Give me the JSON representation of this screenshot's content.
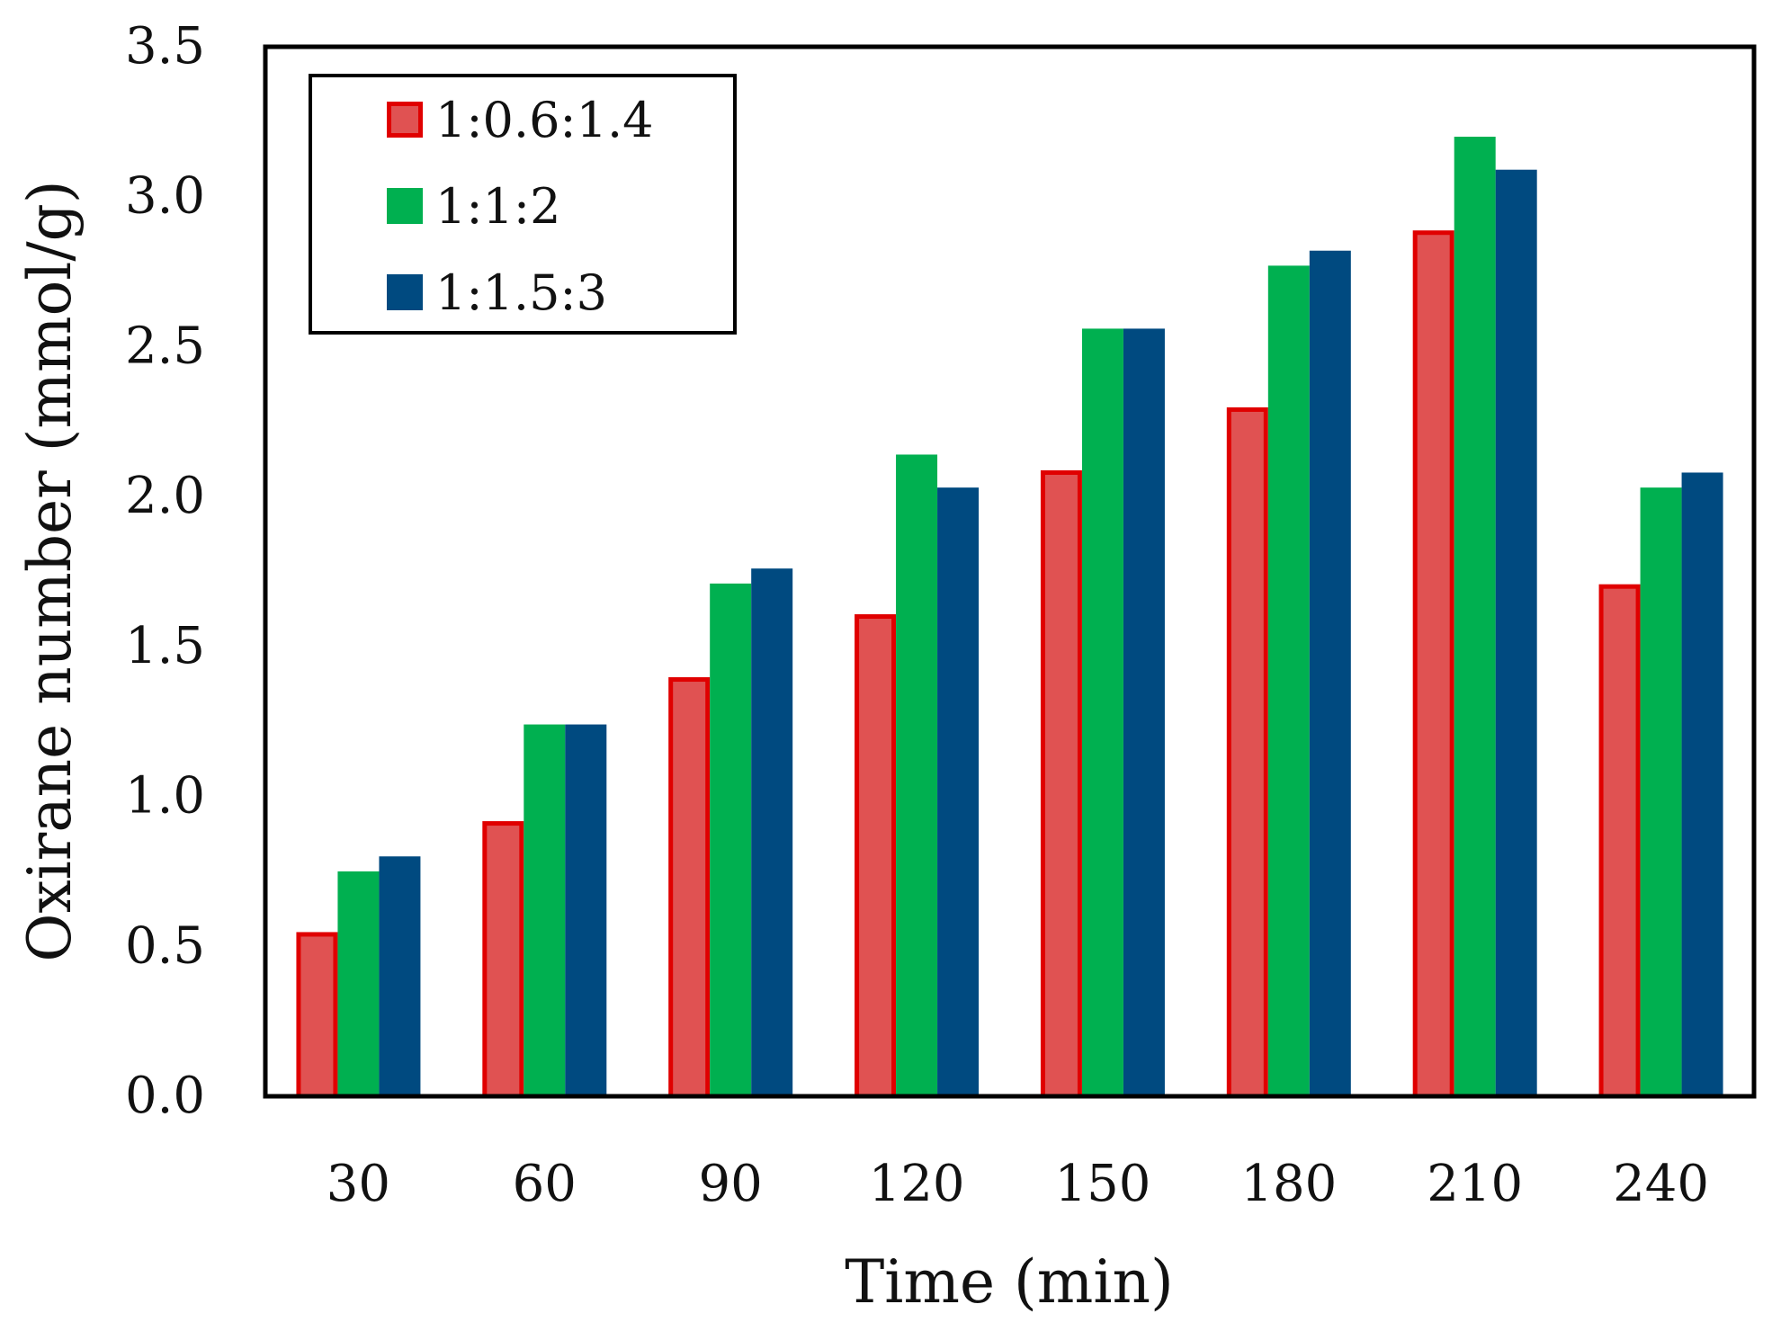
{
  "chart_data": {
    "type": "bar",
    "title": "",
    "xlabel": "Time (min)",
    "ylabel": "Oxirane number (mmol/g)",
    "categories": [
      "30",
      "60",
      "90",
      "120",
      "150",
      "180",
      "210",
      "240"
    ],
    "ylim": [
      0,
      3.5
    ],
    "yticks": [
      "0.0",
      "0.5",
      "1.0",
      "1.5",
      "2.0",
      "2.5",
      "3.0",
      "3.5"
    ],
    "grid": false,
    "legend_position": "top-left",
    "series": [
      {
        "name": "1:0.6:1.4",
        "fill": "#E05252",
        "stroke": "#E00000",
        "values": [
          0.54,
          0.91,
          1.39,
          1.6,
          2.08,
          2.29,
          2.88,
          1.7
        ]
      },
      {
        "name": "1:1:2",
        "fill": "#00B050",
        "stroke": "#00B050",
        "values": [
          0.75,
          1.24,
          1.71,
          2.14,
          2.56,
          2.77,
          3.2,
          2.03
        ]
      },
      {
        "name": "1:1.5:3",
        "fill": "#004A80",
        "stroke": "#004A80",
        "values": [
          0.8,
          1.24,
          1.76,
          2.03,
          2.56,
          2.82,
          3.09,
          2.08
        ]
      }
    ]
  }
}
